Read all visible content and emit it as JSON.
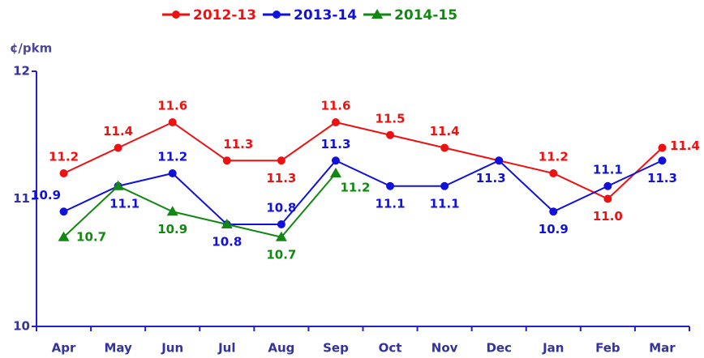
{
  "chart_data": {
    "type": "line",
    "y_label": "¢/pkm",
    "categories": [
      "Apr",
      "May",
      "Jun",
      "Jul",
      "Aug",
      "Sep",
      "Oct",
      "Nov",
      "Dec",
      "Jan",
      "Feb",
      "Mar"
    ],
    "series": [
      {
        "name": "2012-13",
        "color": "#ee1111",
        "marker": "circle",
        "values": [
          11.2,
          11.4,
          11.6,
          11.3,
          11.3,
          11.6,
          11.5,
          11.4,
          11.3,
          11.2,
          11.0,
          11.4
        ],
        "value_labels": [
          "11.2",
          "11.4",
          "11.6",
          "11.3",
          "11.3",
          "11.6",
          "11.5",
          "11.4",
          null,
          "11.2",
          "11.0",
          "11.4"
        ]
      },
      {
        "name": "2013-14",
        "color": "#1111dd",
        "marker": "circle",
        "values": [
          10.9,
          11.1,
          11.2,
          10.8,
          10.8,
          11.3,
          11.1,
          11.1,
          11.3,
          10.9,
          11.1,
          11.3
        ],
        "value_labels": [
          "10.9",
          "11.1",
          "11.2",
          "10.8",
          "10.8",
          "11.3",
          "11.1",
          "11.1",
          "11.3",
          "10.9",
          "11.1",
          "11.3"
        ]
      },
      {
        "name": "2014-15",
        "color": "#118811",
        "marker": "triangle",
        "values": [
          10.7,
          11.1,
          10.9,
          10.8,
          10.7,
          11.2,
          null,
          null,
          null,
          null,
          null,
          null
        ],
        "value_labels": [
          "10.7",
          null,
          "10.9",
          null,
          "10.7",
          "11.2",
          null,
          null,
          null,
          null,
          null,
          null
        ]
      }
    ],
    "ylim": [
      10,
      12
    ],
    "yticks": [
      10,
      11,
      12
    ],
    "grid": false,
    "legend": "top"
  }
}
